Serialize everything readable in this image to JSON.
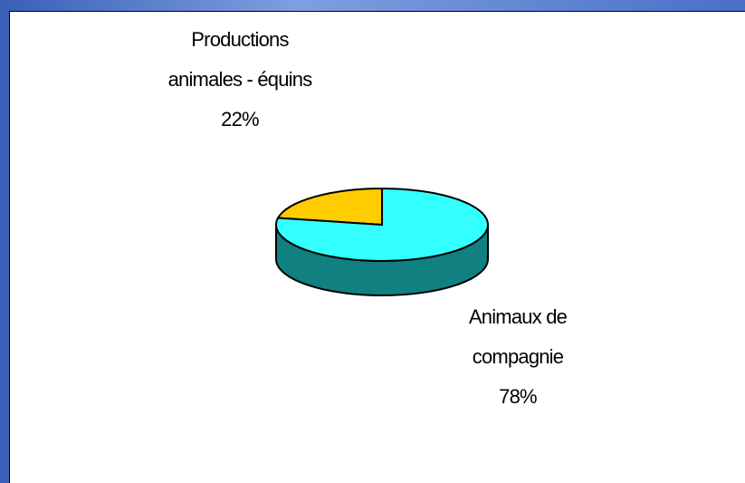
{
  "chart_data": {
    "type": "pie3d",
    "categories": [
      "Productions animales - équins",
      "Animaux de compagnie"
    ],
    "values": [
      22,
      78
    ],
    "value_labels": [
      "22%",
      "78%"
    ],
    "colors": [
      "#ffcc00",
      "#33ffff"
    ],
    "side_color": "#108080"
  }
}
